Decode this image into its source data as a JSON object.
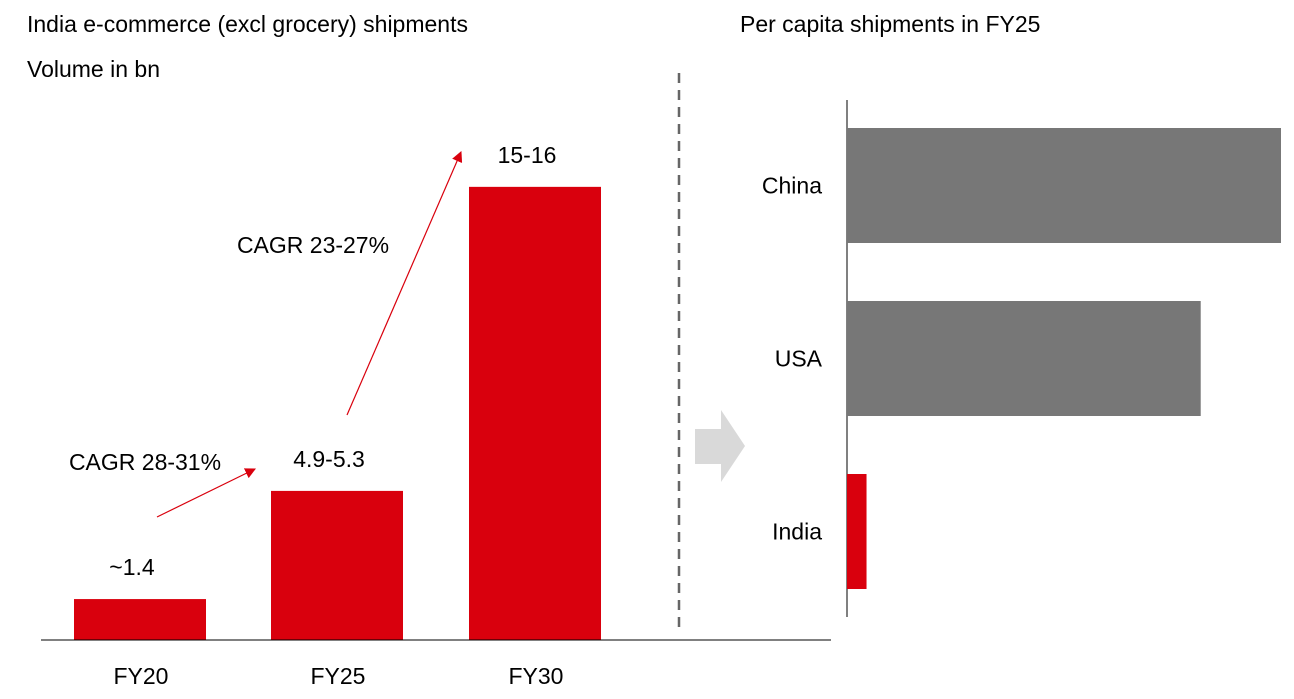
{
  "colors": {
    "primary_bar": "#d9000d",
    "secondary_bar": "#777777",
    "arrow": "#d9000d",
    "divider": "#666666",
    "transition_arrow": "#d9d9d9"
  },
  "chart_data": [
    {
      "type": "bar",
      "title": "India e-commerce (excl grocery) shipments",
      "subtitle": "Volume in bn",
      "categories": [
        "FY20",
        "FY25",
        "FY30"
      ],
      "values": [
        1.4,
        5.1,
        15.5
      ],
      "value_labels": [
        "~1.4",
        "4.9-5.3",
        "15-16"
      ],
      "ylim": [
        0,
        17
      ],
      "annotations": [
        {
          "text": "CAGR 28-31%",
          "from": "FY20",
          "to": "FY25"
        },
        {
          "text": "CAGR 23-27%",
          "from": "FY25",
          "to": "FY30"
        }
      ],
      "grid": false
    },
    {
      "type": "bar",
      "orientation": "horizontal",
      "title": "Per capita shipments in FY25",
      "categories": [
        "China",
        "USA",
        "India"
      ],
      "values": [
        100,
        81.5,
        4.5
      ],
      "xlim": [
        0,
        100
      ],
      "grid": false
    }
  ]
}
